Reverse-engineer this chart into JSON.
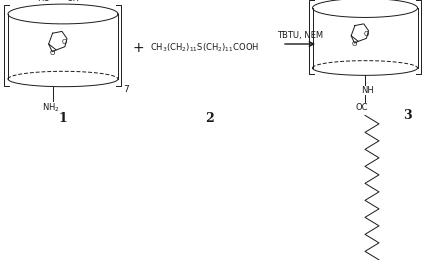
{
  "bg_color": "#ffffff",
  "line_color": "#1a1a1a",
  "fig_width": 4.22,
  "fig_height": 2.6,
  "dpi": 100,
  "compound1_label": "1",
  "compound2_label": "2",
  "compound3_label": "3",
  "compound2_formula": "CH$_3$(CH$_2$)$_{11}$S(CH$_2$)$_{11}$COOH",
  "arrow_label": "TBTU, NEM",
  "plus_sign": "+"
}
